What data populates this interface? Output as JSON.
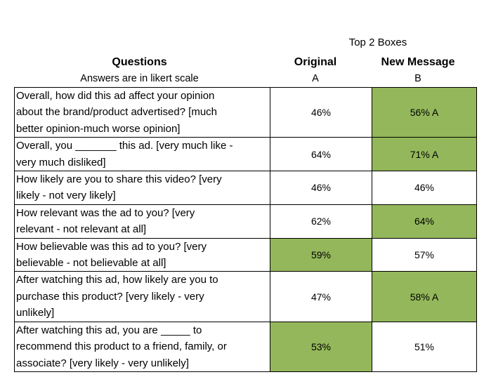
{
  "header": {
    "top_boxes": "Top 2 Boxes",
    "questions_title": "Questions",
    "questions_subtitle": "Answers are in likert scale",
    "original_title": "Original",
    "original_letter": "A",
    "new_title": "New Message",
    "new_letter": "B"
  },
  "colors": {
    "highlight": "#93b75a",
    "border": "#000000"
  },
  "rows": [
    {
      "lines": [
        "Overall, how did this ad affect your opinion",
        "about the brand/product advertised? [much",
        "better opinion-much worse opinion]"
      ],
      "original": "46%",
      "new": "56% A",
      "highlight_original": false,
      "highlight_new": true
    },
    {
      "lines": [
        "Overall, you _______ this ad. [very much like -",
        "very much disliked]"
      ],
      "original": "64%",
      "new": "71% A",
      "highlight_original": false,
      "highlight_new": true
    },
    {
      "lines": [
        "How likely are you to share this video? [very",
        "likely - not very likely]"
      ],
      "original": "46%",
      "new": "46%",
      "highlight_original": false,
      "highlight_new": false
    },
    {
      "lines": [
        "How relevant was the ad to you? [very",
        "relevant - not relevant at all]"
      ],
      "original": "62%",
      "new": "64%",
      "highlight_original": false,
      "highlight_new": true
    },
    {
      "lines": [
        "How believable was this ad to you? [very",
        "believable - not believable at all]"
      ],
      "original": "59%",
      "new": "57%",
      "highlight_original": true,
      "highlight_new": false
    },
    {
      "lines": [
        "After watching this ad, how likely are you to",
        "purchase this product? [very likely - very",
        "unlikely]"
      ],
      "original": "47%",
      "new": "58% A",
      "highlight_original": false,
      "highlight_new": true
    },
    {
      "lines": [
        "After watching this ad, you are _____ to",
        "recommend this product to a friend, family, or",
        "associate? [very likely - very unlikely]"
      ],
      "original": "53%",
      "new": "51%",
      "highlight_original": true,
      "highlight_new": false
    }
  ]
}
